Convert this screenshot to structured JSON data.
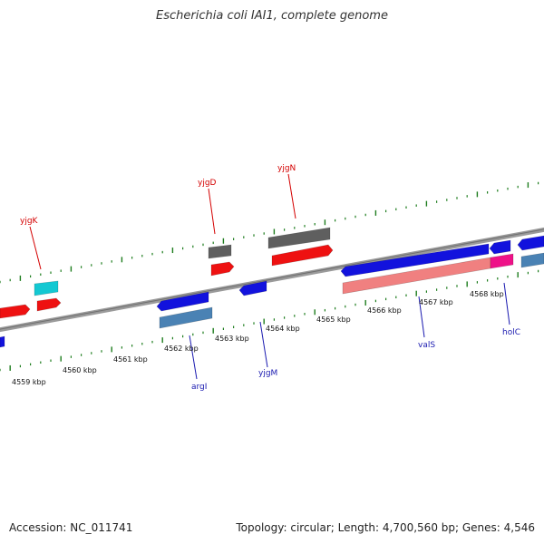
{
  "title": "Escherichia coli IAI1, complete genome",
  "footer": {
    "accession": "Accession: NC_011741",
    "summary": "Topology: circular; Length: 4,700,560 bp; Genes: 4,546"
  },
  "colors": {
    "backbone": "#8a8a8a",
    "tick": "#1e7d1e",
    "label_top": "#d40000",
    "label_bottom": "#1a1ab0",
    "red": "#ee1111",
    "blue": "#1212dd",
    "grey": "#5f5f5f",
    "cyan": "#14c8d2",
    "steel": "#4a82b4",
    "pink": "#f08080",
    "magenta": "#ee1188"
  },
  "scale_labels": [
    "4559 kbp",
    "4560 kbp",
    "4561 kbp",
    "4562 kbp",
    "4563 kbp",
    "4564 kbp",
    "4565 kbp",
    "4566 kbp",
    "4567 kbp",
    "4568 kbp"
  ],
  "gene_labels": {
    "top": [
      "yjgK",
      "yjgD",
      "yjgN"
    ],
    "bottom": [
      "argI",
      "yjgM",
      "valS",
      "holC"
    ]
  }
}
